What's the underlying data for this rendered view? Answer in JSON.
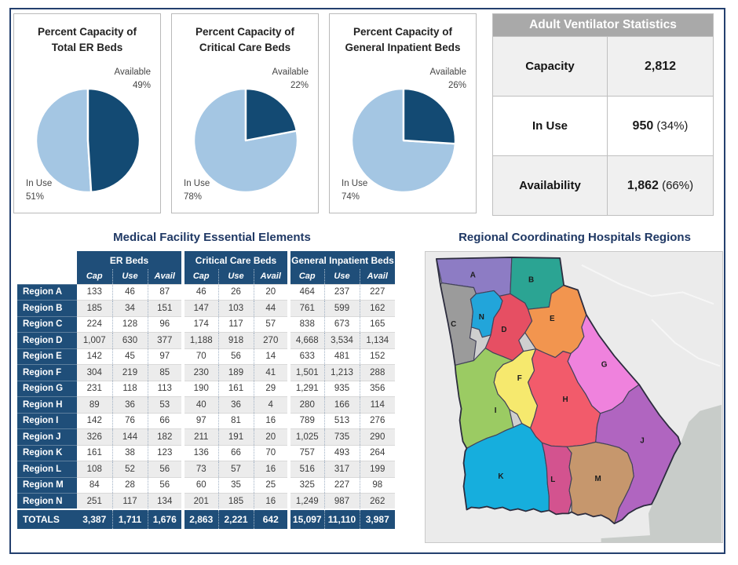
{
  "chart_data": [
    {
      "id": "pie_er",
      "type": "pie",
      "title_line1": "Percent Capacity of",
      "title_line2": "Total ER Beds",
      "slices": [
        {
          "label": "Available",
          "value": 49,
          "pct": "49%"
        },
        {
          "label": "In Use",
          "value": 51,
          "pct": "51%"
        }
      ],
      "colors": {
        "available": "#134a73",
        "in_use": "#a4c6e3"
      },
      "legend_position": "outside-labels"
    },
    {
      "id": "pie_cc",
      "type": "pie",
      "title_line1": "Percent Capacity of",
      "title_line2": "Critical Care Beds",
      "slices": [
        {
          "label": "Available",
          "value": 22,
          "pct": "22%"
        },
        {
          "label": "In Use",
          "value": 78,
          "pct": "78%"
        }
      ],
      "colors": {
        "available": "#134a73",
        "in_use": "#a4c6e3"
      },
      "legend_position": "outside-labels"
    },
    {
      "id": "pie_gi",
      "type": "pie",
      "title_line1": "Percent Capacity of",
      "title_line2": "General Inpatient Beds",
      "slices": [
        {
          "label": "Available",
          "value": 26,
          "pct": "26%"
        },
        {
          "label": "In Use",
          "value": 74,
          "pct": "74%"
        }
      ],
      "colors": {
        "available": "#134a73",
        "in_use": "#a4c6e3"
      },
      "legend_position": "outside-labels"
    },
    {
      "id": "ventilator",
      "type": "table",
      "title": "Adult Ventilator Statistics",
      "rows": [
        {
          "label": "Capacity",
          "value": "2,812",
          "pct": ""
        },
        {
          "label": "In Use",
          "value": "950",
          "pct": " (34%)"
        },
        {
          "label": "Availability",
          "value": "1,862",
          "pct": " (66%)"
        }
      ],
      "header_bg": "#a9a9a9"
    },
    {
      "id": "facility",
      "type": "table",
      "title": "Medical Facility Essential Elements",
      "col_groups": [
        "ER Beds",
        "Critical Care Beds",
        "General Inpatient Beds"
      ],
      "sub_columns": [
        "Cap",
        "Use",
        "Avail"
      ],
      "rows": [
        {
          "region": "Region A",
          "values": [
            "133",
            "46",
            "87",
            "46",
            "26",
            "20",
            "464",
            "237",
            "227"
          ]
        },
        {
          "region": "Region B",
          "values": [
            "185",
            "34",
            "151",
            "147",
            "103",
            "44",
            "761",
            "599",
            "162"
          ]
        },
        {
          "region": "Region C",
          "values": [
            "224",
            "128",
            "96",
            "174",
            "117",
            "57",
            "838",
            "673",
            "165"
          ]
        },
        {
          "region": "Region D",
          "values": [
            "1,007",
            "630",
            "377",
            "1,188",
            "918",
            "270",
            "4,668",
            "3,534",
            "1,134"
          ]
        },
        {
          "region": "Region E",
          "values": [
            "142",
            "45",
            "97",
            "70",
            "56",
            "14",
            "633",
            "481",
            "152"
          ]
        },
        {
          "region": "Region F",
          "values": [
            "304",
            "219",
            "85",
            "230",
            "189",
            "41",
            "1,501",
            "1,213",
            "288"
          ]
        },
        {
          "region": "Region G",
          "values": [
            "231",
            "118",
            "113",
            "190",
            "161",
            "29",
            "1,291",
            "935",
            "356"
          ]
        },
        {
          "region": "Region H",
          "values": [
            "89",
            "36",
            "53",
            "40",
            "36",
            "4",
            "280",
            "166",
            "114"
          ]
        },
        {
          "region": "Region I",
          "values": [
            "142",
            "76",
            "66",
            "97",
            "81",
            "16",
            "789",
            "513",
            "276"
          ]
        },
        {
          "region": "Region J",
          "values": [
            "326",
            "144",
            "182",
            "211",
            "191",
            "20",
            "1,025",
            "735",
            "290"
          ]
        },
        {
          "region": "Region K",
          "values": [
            "161",
            "38",
            "123",
            "136",
            "66",
            "70",
            "757",
            "493",
            "264"
          ]
        },
        {
          "region": "Region L",
          "values": [
            "108",
            "52",
            "56",
            "73",
            "57",
            "16",
            "516",
            "317",
            "199"
          ]
        },
        {
          "region": "Region M",
          "values": [
            "84",
            "28",
            "56",
            "60",
            "35",
            "25",
            "325",
            "227",
            "98"
          ]
        },
        {
          "region": "Region N",
          "values": [
            "251",
            "117",
            "134",
            "201",
            "185",
            "16",
            "1,249",
            "987",
            "262"
          ]
        }
      ],
      "totals": {
        "region": "TOTALS",
        "values": [
          "3,387",
          "1,711",
          "1,676",
          "2,863",
          "2,221",
          "642",
          "15,097",
          "11,110",
          "3,987"
        ]
      },
      "header_bg": "#1f4e79"
    }
  ],
  "map": {
    "title": "Regional Coordinating Hospitals Regions",
    "regions": [
      {
        "label": "A",
        "color": "#8d7cc4"
      },
      {
        "label": "B",
        "color": "#2ba493"
      },
      {
        "label": "C",
        "color": "#9b9b9b"
      },
      {
        "label": "D",
        "color": "#e64f63"
      },
      {
        "label": "E",
        "color": "#f2954f"
      },
      {
        "label": "F",
        "color": "#f6e96e"
      },
      {
        "label": "G",
        "color": "#ef82dd"
      },
      {
        "label": "H",
        "color": "#f25b6b"
      },
      {
        "label": "I",
        "color": "#9bcb63"
      },
      {
        "label": "J",
        "color": "#b065c0"
      },
      {
        "label": "K",
        "color": "#16aedd"
      },
      {
        "label": "L",
        "color": "#d3538f"
      },
      {
        "label": "M",
        "color": "#c6976d"
      },
      {
        "label": "N",
        "color": "#22a5da"
      }
    ],
    "theme": {
      "title_color": "#1f3864",
      "land_bg": "#ebebeb",
      "ocean": "#c8ccc9"
    }
  }
}
